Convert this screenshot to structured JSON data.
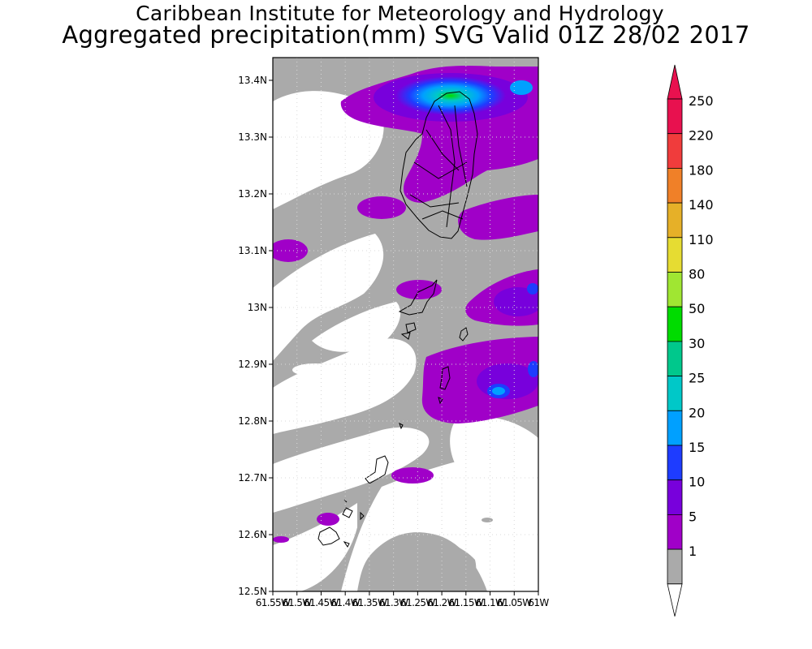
{
  "titles": {
    "line1": "Caribbean Institute for Meteorology and Hydrology",
    "line2": "Aggregated precipitation(mm) SVG Valid 01Z 28/02 2017"
  },
  "map": {
    "lat_ticks": [
      "13.4N",
      "13.3N",
      "13.2N",
      "13.1N",
      "13N",
      "12.9N",
      "12.8N",
      "12.7N",
      "12.6N",
      "12.5N"
    ],
    "lon_ticks": [
      "61.55W",
      "61.5W",
      "61.45W",
      "61.4W",
      "61.35W",
      "61.3W",
      "61.25W",
      "61.2W",
      "61.15W",
      "61.1W",
      "61.05W",
      "61W"
    ]
  },
  "colorbar": {
    "levels": [
      {
        "label": "250",
        "color": "#e8114f"
      },
      {
        "label": "220",
        "color": "#f03c3c"
      },
      {
        "label": "180",
        "color": "#f08028"
      },
      {
        "label": "140",
        "color": "#e6b028"
      },
      {
        "label": "110",
        "color": "#e6dc32"
      },
      {
        "label": "80",
        "color": "#a0e632"
      },
      {
        "label": "50",
        "color": "#00dc00"
      },
      {
        "label": "30",
        "color": "#00c88c"
      },
      {
        "label": "25",
        "color": "#00c8c8"
      },
      {
        "label": "20",
        "color": "#00a0ff"
      },
      {
        "label": "15",
        "color": "#1e3cff"
      },
      {
        "label": "10",
        "color": "#7800dc"
      },
      {
        "label": "5",
        "color": "#a000c8"
      },
      {
        "label": "1",
        "color": "#aaaaaa"
      }
    ]
  }
}
